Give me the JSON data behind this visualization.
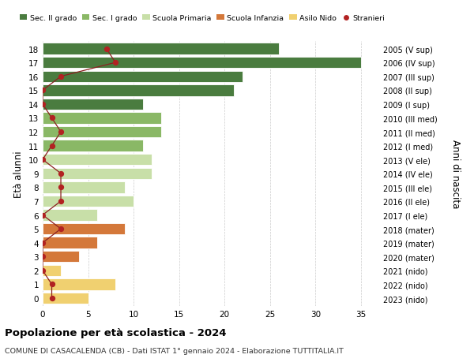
{
  "ages": [
    18,
    17,
    16,
    15,
    14,
    13,
    12,
    11,
    10,
    9,
    8,
    7,
    6,
    5,
    4,
    3,
    2,
    1,
    0
  ],
  "years": [
    "2005 (V sup)",
    "2006 (IV sup)",
    "2007 (III sup)",
    "2008 (II sup)",
    "2009 (I sup)",
    "2010 (III med)",
    "2011 (II med)",
    "2012 (I med)",
    "2013 (V ele)",
    "2014 (IV ele)",
    "2015 (III ele)",
    "2016 (II ele)",
    "2017 (I ele)",
    "2018 (mater)",
    "2019 (mater)",
    "2020 (mater)",
    "2021 (nido)",
    "2022 (nido)",
    "2023 (nido)"
  ],
  "values": [
    26,
    35,
    22,
    21,
    11,
    13,
    13,
    11,
    12,
    12,
    9,
    10,
    6,
    9,
    6,
    4,
    2,
    8,
    5
  ],
  "bar_colors": [
    "#4a7c3f",
    "#4a7c3f",
    "#4a7c3f",
    "#4a7c3f",
    "#4a7c3f",
    "#8ab866",
    "#8ab866",
    "#8ab866",
    "#c8dfa8",
    "#c8dfa8",
    "#c8dfa8",
    "#c8dfa8",
    "#c8dfa8",
    "#d4783a",
    "#d4783a",
    "#d4783a",
    "#f0d070",
    "#f0d070",
    "#f0d070"
  ],
  "stranieri": [
    7,
    8,
    2,
    0,
    0,
    1,
    2,
    1,
    0,
    2,
    2,
    2,
    0,
    2,
    0,
    0,
    0,
    1,
    1
  ],
  "legend_labels": [
    "Sec. II grado",
    "Sec. I grado",
    "Scuola Primaria",
    "Scuola Infanzia",
    "Asilo Nido",
    "Stranieri"
  ],
  "legend_colors": [
    "#4a7c3f",
    "#8ab866",
    "#c8dfa8",
    "#d4783a",
    "#f0d070",
    "#b22222"
  ],
  "title": "Popolazione per età scolastica - 2024",
  "subtitle": "COMUNE DI CASACALENDA (CB) - Dati ISTAT 1° gennaio 2024 - Elaborazione TUTTITALIA.IT",
  "ylabel_left": "Età alunni",
  "ylabel_right": "Anni di nascita",
  "xlim": [
    0,
    37
  ],
  "xticks": [
    0,
    5,
    10,
    15,
    20,
    25,
    30,
    35
  ],
  "background_color": "#ffffff",
  "grid_color": "#cccccc",
  "line_color": "#8b2020",
  "marker_color": "#b22222",
  "bar_height": 0.82
}
